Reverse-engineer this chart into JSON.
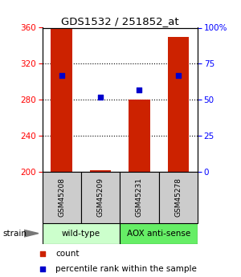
{
  "title": "GDS1532 / 251852_at",
  "samples": [
    "GSM45208",
    "GSM45209",
    "GSM45231",
    "GSM45278"
  ],
  "count_values": [
    360,
    202,
    280,
    350
  ],
  "count_base": 200,
  "percentile_values": [
    67,
    52,
    57,
    67
  ],
  "ylim_left": [
    200,
    360
  ],
  "ylim_right": [
    0,
    100
  ],
  "yticks_left": [
    200,
    240,
    280,
    320,
    360
  ],
  "yticks_right": [
    0,
    25,
    50,
    75,
    100
  ],
  "bar_color": "#cc2200",
  "dot_color": "#0000cc",
  "groups": [
    {
      "label": "wild-type",
      "samples": [
        0,
        1
      ],
      "color": "#ccffcc"
    },
    {
      "label": "AOX anti-sense",
      "samples": [
        2,
        3
      ],
      "color": "#66ee66"
    }
  ],
  "group_row_label": "strain",
  "legend_count_label": "count",
  "legend_percentile_label": "percentile rank within the sample",
  "sample_box_color": "#cccccc",
  "background_color": "#ffffff",
  "bar_width": 0.55
}
